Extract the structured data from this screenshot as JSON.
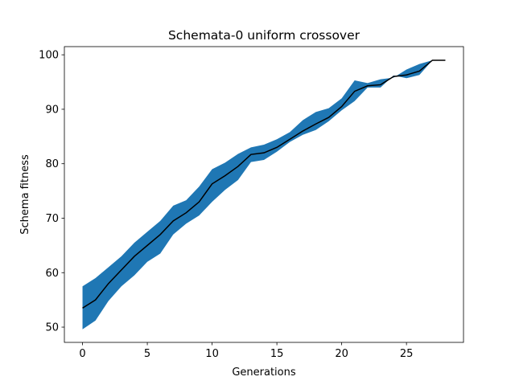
{
  "chart_data": {
    "type": "line",
    "title": "Schemata-0 uniform crossover",
    "xlabel": "Generations",
    "ylabel": "Schema fitness",
    "x": [
      0,
      1,
      2,
      3,
      4,
      5,
      6,
      7,
      8,
      9,
      10,
      11,
      12,
      13,
      14,
      15,
      16,
      17,
      18,
      19,
      20,
      21,
      22,
      23,
      24,
      25,
      26,
      27,
      28
    ],
    "values": [
      53.5,
      55,
      58,
      60.5,
      63,
      65,
      67,
      69.5,
      71,
      73,
      76.3,
      77.8,
      79.5,
      81.7,
      82,
      83,
      84.5,
      86,
      87.3,
      88.5,
      90.5,
      93.3,
      94.3,
      94.5,
      96,
      96.3,
      97,
      99,
      99
    ],
    "band_high": [
      57.5,
      59,
      61,
      63,
      65.5,
      67.5,
      69.5,
      72.3,
      73.3,
      75.8,
      79,
      80.2,
      81.8,
      83,
      83.5,
      84.5,
      85.8,
      88,
      89.5,
      90.2,
      92,
      95.3,
      94.8,
      95.5,
      95.8,
      97.3,
      98.3,
      99,
      99
    ],
    "band_low": [
      49.6,
      51.2,
      54.8,
      57.5,
      59.5,
      62,
      63.5,
      67,
      69,
      70.5,
      73,
      75.2,
      77,
      80.3,
      80.7,
      82.2,
      84,
      85.3,
      86.2,
      87.8,
      89.8,
      91.5,
      94,
      94,
      96.2,
      95.7,
      96.3,
      99,
      99
    ],
    "color": "#000000",
    "band_color": "#1f77b4",
    "xlim": [
      -1.4,
      29.4
    ],
    "ylim": [
      47.2,
      101.5
    ],
    "xticks": [
      0,
      5,
      10,
      15,
      20,
      25
    ],
    "yticks": [
      50,
      60,
      70,
      80,
      90,
      100
    ]
  }
}
